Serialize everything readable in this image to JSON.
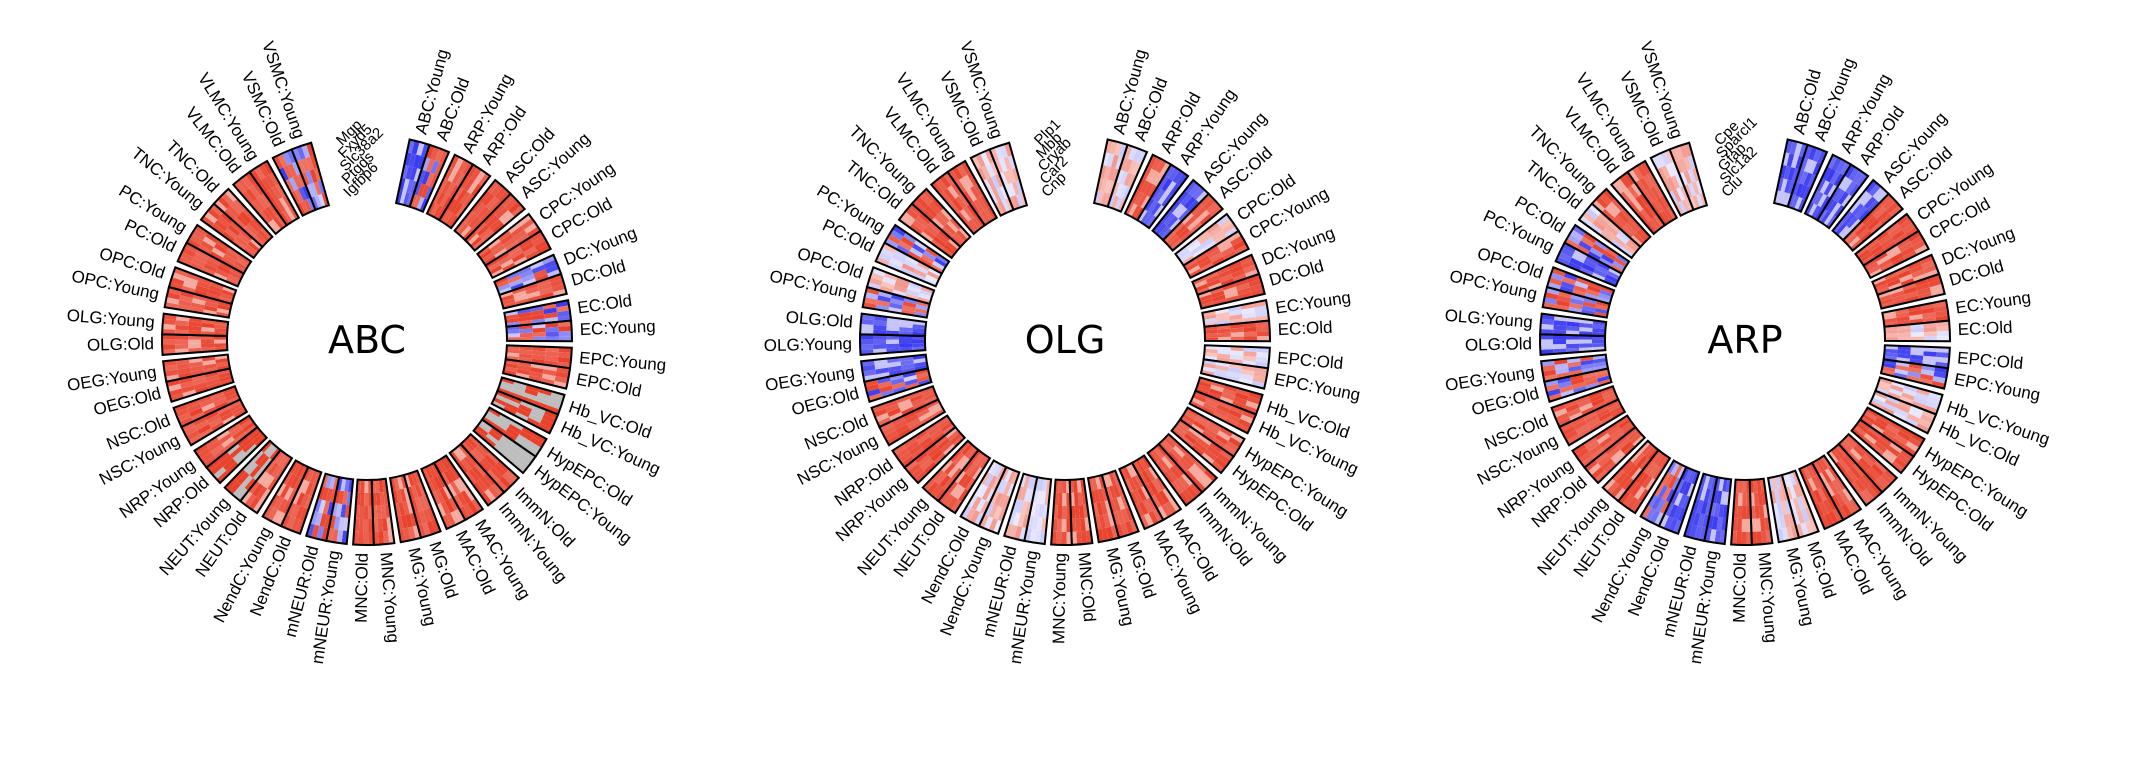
{
  "chart_data": [
    {
      "type": "heatmap",
      "title": "ABC",
      "genes": [
        "Mgp",
        "Fxyd5",
        "Slc38a2",
        "Ptgds",
        "Igfbp6"
      ],
      "segments": [
        "ABC:Young",
        "ABC:Old",
        "ARP:Young",
        "ARP:Old",
        "ASC:Old",
        "ASC:Young",
        "CPC:Young",
        "CPC:Old",
        "DC:Young",
        "DC:Old",
        "EC:Old",
        "EC:Young",
        "EPC:Young",
        "EPC:Old",
        "Hb_VC:Old",
        "Hb_VC:Young",
        "HypEPC:Old",
        "HypEPC:Young",
        "ImmN:Old",
        "ImmN:Young",
        "MAC:Young",
        "MAC:Old",
        "MG:Old",
        "MG:Young",
        "MNC:Young",
        "MNC:Old",
        "mNEUR:Young",
        "mNEUR:Old",
        "NendC:Old",
        "NendC:Young",
        "NEUT:Old",
        "NEUT:Young",
        "NRP:Old",
        "NRP:Young",
        "NSC:Young",
        "NSC:Old",
        "OEG:Old",
        "OEG:Young",
        "OLG:Old",
        "OLG:Young",
        "OPC:Young",
        "OPC:Old",
        "PC:Old",
        "PC:Young",
        "TNC:Young",
        "TNC:Old",
        "VLMC:Old",
        "VLMC:Young",
        "VSMC:Old",
        "VSMC:Young"
      ],
      "colors": {
        "high": "#e8412c",
        "low": "#3a3aef",
        "missing": "#bdbdbd",
        "mid": "#ffffff"
      }
    },
    {
      "type": "heatmap",
      "title": "OLG",
      "genes": [
        "Plp1",
        "Mbp",
        "Cryab",
        "Car2",
        "Cnp"
      ],
      "segments": [
        "ABC:Young",
        "ABC:Old",
        "ARP:Old",
        "ARP:Young",
        "ASC:Young",
        "ASC:Old",
        "CPC:Old",
        "CPC:Young",
        "DC:Young",
        "DC:Old",
        "EC:Young",
        "EC:Old",
        "EPC:Old",
        "EPC:Young",
        "Hb_VC:Old",
        "Hb_VC:Young",
        "HypEPC:Young",
        "HypEPC:Old",
        "ImmN:Young",
        "ImmN:Old",
        "MAC:Old",
        "MAC:Young",
        "MG:Old",
        "MG:Young",
        "MNC:Old",
        "MNC:Young",
        "mNEUR:Young",
        "mNEUR:Old",
        "NendC:Young",
        "NendC:Old",
        "NEUT:Old",
        "NEUT:Young",
        "NRP:Young",
        "NRP:Old",
        "NSC:Young",
        "NSC:Old",
        "OEG:Old",
        "OEG:Young",
        "OLG:Young",
        "OLG:Old",
        "OPC:Young",
        "OPC:Old",
        "PC:Old",
        "PC:Young",
        "TNC:Old",
        "TNC:Young",
        "VLMC:Old",
        "VLMC:Young",
        "VSMC:Old",
        "VSMC:Young"
      ],
      "colors": {
        "high": "#e8412c",
        "low": "#3a3aef",
        "missing": "#bdbdbd",
        "mid": "#ffffff"
      }
    },
    {
      "type": "heatmap",
      "title": "ARP",
      "genes": [
        "Cpe",
        "Sparcl1",
        "Gfap",
        "Slc1a2",
        "Clu"
      ],
      "segments": [
        "ABC:Old",
        "ABC:Young",
        "ARP:Young",
        "ARP:Old",
        "ASC:Young",
        "ASC:Old",
        "CPC:Young",
        "CPC:Old",
        "DC:Young",
        "DC:Old",
        "EC:Young",
        "EC:Old",
        "EPC:Old",
        "EPC:Young",
        "Hb_VC:Young",
        "Hb_VC:Old",
        "HypEPC:Young",
        "HypEPC:Old",
        "ImmN:Young",
        "ImmN:Old",
        "MAC:Young",
        "MAC:Old",
        "MG:Old",
        "MG:Young",
        "MNC:Young",
        "MNC:Old",
        "mNEUR:Young",
        "mNEUR:Old",
        "NendC:Old",
        "NendC:Young",
        "NEUT:Old",
        "NEUT:Young",
        "NRP:Old",
        "NRP:Young",
        "NSC:Young",
        "NSC:Old",
        "OEG:Old",
        "OEG:Young",
        "OLG:Old",
        "OLG:Young",
        "OPC:Young",
        "OPC:Old",
        "PC:Young",
        "PC:Old",
        "TNC:Old",
        "TNC:Young",
        "VLMC:Old",
        "VLMC:Young",
        "VSMC:Old",
        "VSMC:Young"
      ],
      "colors": {
        "high": "#e8412c",
        "low": "#3a3aef",
        "missing": "#bdbdbd",
        "mid": "#ffffff"
      }
    }
  ]
}
